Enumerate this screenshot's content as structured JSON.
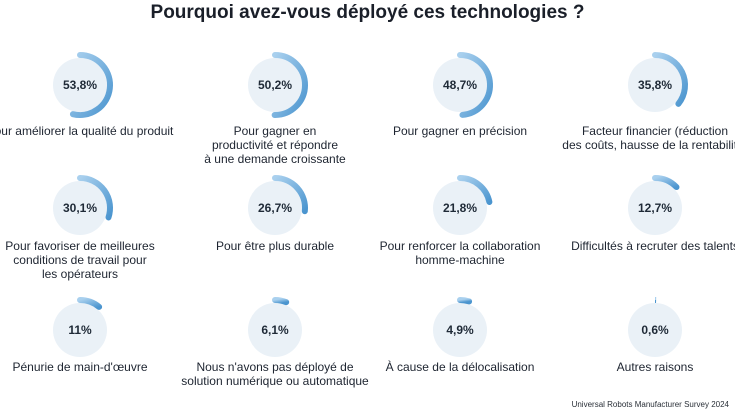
{
  "chart_data": {
    "type": "radial-progress",
    "title": "Pourquoi avez-vous déployé ces technologies ?",
    "source": "Universal Robots Manufacturer Survey 2024",
    "colors": {
      "track": "#eaf1f7",
      "arc_start": "#a9d0ee",
      "arc_end": "#4b95cf"
    },
    "items": [
      {
        "value": 53.8,
        "value_label": "53,8%",
        "label": "Pour améliorer la qualité du produit"
      },
      {
        "value": 50.2,
        "value_label": "50,2%",
        "label": "Pour gagner en\nproductivité et répondre\nà une demande croissante"
      },
      {
        "value": 48.7,
        "value_label": "48,7%",
        "label": "Pour gagner en précision"
      },
      {
        "value": 35.8,
        "value_label": "35,8%",
        "label": "Facteur financier (réduction\ndes coûts, hausse de la rentabilité)"
      },
      {
        "value": 30.1,
        "value_label": "30,1%",
        "label": "Pour favoriser de meilleures\nconditions de travail pour\nles opérateurs"
      },
      {
        "value": 26.7,
        "value_label": "26,7%",
        "label": "Pour être plus durable"
      },
      {
        "value": 21.8,
        "value_label": "21,8%",
        "label": "Pour renforcer la collaboration\nhomme-machine"
      },
      {
        "value": 12.7,
        "value_label": "12,7%",
        "label": "Difficultés à recruter des talents"
      },
      {
        "value": 11,
        "value_label": "11%",
        "label": "Pénurie de main-d'œuvre"
      },
      {
        "value": 6.1,
        "value_label": "6,1%",
        "label": "Nous n'avons pas déployé de\nsolution numérique ou automatique"
      },
      {
        "value": 4.9,
        "value_label": "4,9%",
        "label": "À cause de la délocalisation"
      },
      {
        "value": 0.6,
        "value_label": "0,6%",
        "label": "Autres raisons"
      }
    ]
  }
}
